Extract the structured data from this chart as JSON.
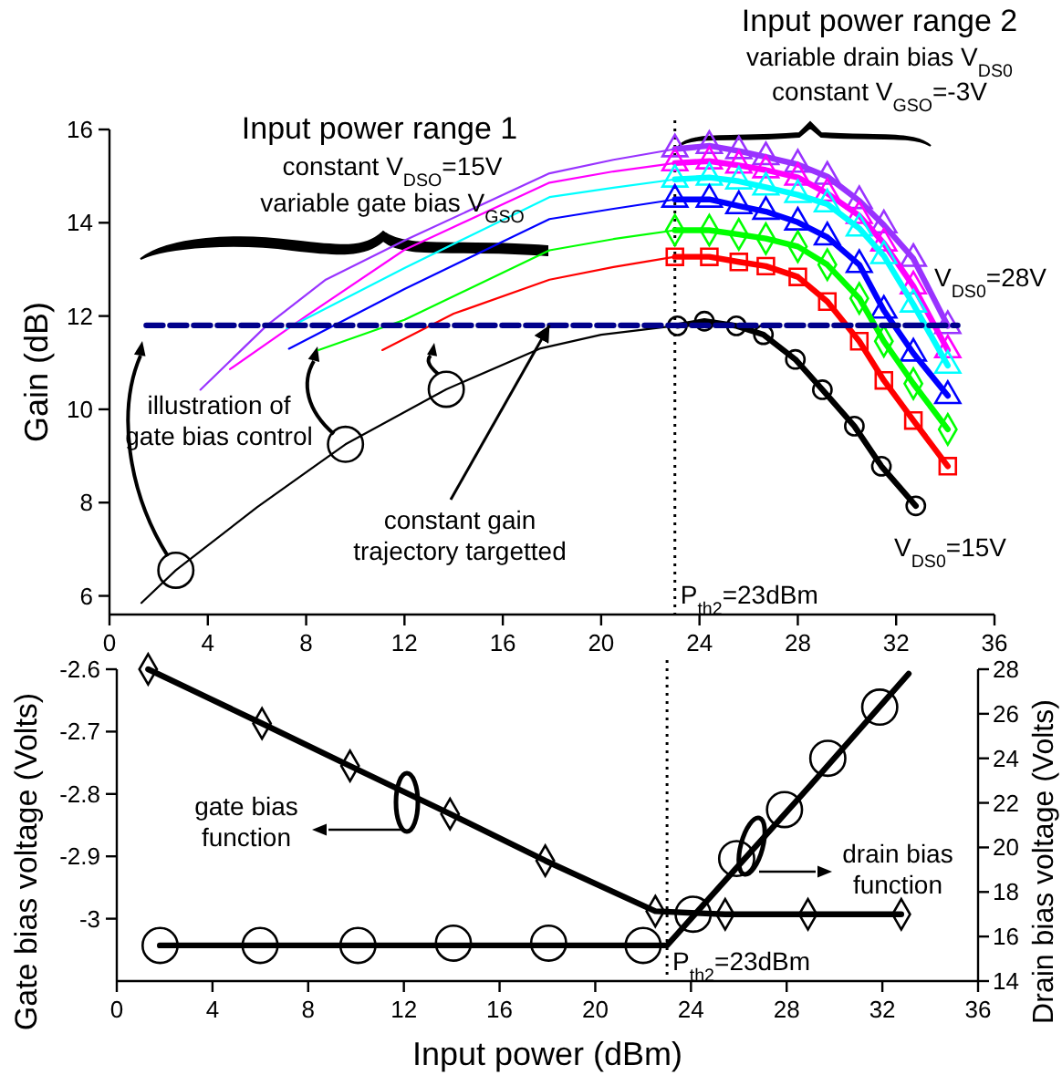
{
  "chart_data": [
    {
      "type": "line",
      "ylabel": "Gain (dB)",
      "xlim": [
        0,
        36
      ],
      "xticks": [
        0,
        4,
        8,
        12,
        16,
        20,
        24,
        28,
        32,
        36
      ],
      "ylim": [
        5.6,
        16
      ],
      "yticks": [
        6,
        8,
        10,
        12,
        14,
        16
      ],
      "series": [
        {
          "color": "#9933ff",
          "marker": "triangle",
          "x": [
            23.0,
            24.4,
            25.6,
            26.7,
            28.0,
            29.2,
            30.5,
            31.5,
            32.7,
            34.1
          ],
          "values": [
            15.58,
            15.65,
            15.54,
            15.41,
            15.25,
            14.99,
            14.47,
            13.95,
            13.23,
            11.79
          ]
        },
        {
          "color": "#ff00ff",
          "marker": "triangle",
          "x": [
            23.0,
            24.4,
            25.6,
            26.7,
            28.0,
            29.2,
            30.5,
            31.5,
            32.7,
            34.1
          ],
          "values": [
            15.28,
            15.32,
            15.23,
            15.13,
            14.97,
            14.63,
            14.15,
            13.56,
            12.64,
            11.27
          ]
        },
        {
          "color": "#00ffff",
          "marker": "triangle",
          "x": [
            23.0,
            24.4,
            25.6,
            26.7,
            28.0,
            29.2,
            30.5,
            31.5,
            32.7,
            34.1
          ],
          "values": [
            14.93,
            14.97,
            14.89,
            14.76,
            14.6,
            14.4,
            13.88,
            13.29,
            12.25,
            10.94
          ]
        },
        {
          "color": "#0000ff",
          "marker": "triangle",
          "x": [
            23.0,
            24.4,
            25.6,
            26.7,
            28.0,
            29.2,
            30.5,
            31.5,
            32.7,
            34.1
          ],
          "values": [
            14.5,
            14.5,
            14.36,
            14.24,
            14.01,
            13.69,
            13.1,
            12.12,
            11.2,
            10.29
          ]
        },
        {
          "color": "#00ff00",
          "marker": "diamond",
          "x": [
            23.0,
            24.4,
            25.6,
            26.7,
            28.0,
            29.2,
            30.5,
            31.5,
            32.7,
            34.1
          ],
          "values": [
            13.84,
            13.84,
            13.75,
            13.66,
            13.49,
            13.1,
            12.38,
            11.46,
            10.55,
            9.57
          ]
        },
        {
          "color": "#ff0000",
          "marker": "square",
          "x": [
            23.0,
            24.4,
            25.6,
            26.7,
            28.0,
            29.2,
            30.5,
            31.5,
            32.7,
            34.1
          ],
          "values": [
            13.27,
            13.27,
            13.16,
            13.07,
            12.84,
            12.31,
            11.46,
            10.62,
            9.76,
            8.78
          ]
        },
        {
          "color": "#000000",
          "marker": "circle",
          "x": [
            23.1,
            24.2,
            25.5,
            26.6,
            27.9,
            29.0,
            30.3,
            31.4,
            32.8
          ],
          "values": [
            11.79,
            11.89,
            11.79,
            11.6,
            11.07,
            10.42,
            9.64,
            8.78,
            7.93
          ]
        },
        {
          "color": "#9933ff",
          "x": [
            3.7,
            6.4,
            8.8,
            12,
            17.9,
            20.5,
            23
          ],
          "values": [
            10.42,
            11.8,
            12.78,
            13.62,
            15.06,
            15.35,
            15.58
          ]
        },
        {
          "color": "#ff00ff",
          "x": [
            4.9,
            8,
            12,
            17.9,
            20.5,
            23
          ],
          "values": [
            10.86,
            12.0,
            13.42,
            14.86,
            15.1,
            15.28
          ]
        },
        {
          "color": "#00ffff",
          "x": [
            7.2,
            12,
            17.9,
            20.5,
            23
          ],
          "values": [
            11.73,
            13.03,
            14.55,
            14.75,
            14.93
          ]
        },
        {
          "color": "#0000ff",
          "x": [
            7.3,
            12,
            17.9,
            20.5,
            23
          ],
          "values": [
            11.3,
            12.58,
            14.08,
            14.3,
            14.5
          ]
        },
        {
          "color": "#00ff00",
          "x": [
            8.5,
            12,
            17.9,
            20.5,
            23
          ],
          "values": [
            11.27,
            11.92,
            13.41,
            13.65,
            13.84
          ]
        },
        {
          "color": "#ff0000",
          "x": [
            11.1,
            14,
            17.9,
            20.5,
            23
          ],
          "values": [
            11.27,
            12.05,
            12.78,
            13.05,
            13.27
          ]
        },
        {
          "color": "#000000",
          "x": [
            1.3,
            2.7,
            6,
            9.6,
            13.7,
            17.5,
            20,
            23
          ],
          "values": [
            5.85,
            6.55,
            7.9,
            9.25,
            10.43,
            11.3,
            11.6,
            11.79
          ]
        },
        {
          "color": "#00008b",
          "line_style": "dashed",
          "x": [
            1.5,
            34.5
          ],
          "values": [
            11.8,
            11.8
          ]
        },
        {
          "type": "scatter",
          "color": "#000000",
          "marker": "circle",
          "x": [
            2.7,
            9.6,
            13.7
          ],
          "values": [
            6.55,
            9.25,
            10.43
          ]
        }
      ],
      "ref_lines": [
        {
          "axis": "x",
          "value": 23,
          "label": "P$_{th2}$=23dBm",
          "color": "#000000",
          "line_style": "dotted"
        }
      ],
      "annotations": [
        "Input power range 1",
        "constant V$_{DSO}$=15V",
        "variable gate bias V$_{GSO}$",
        "Input power range 2",
        "variable drain bias V$_{DS0}$",
        "constant  V$_{GSO}$=-3V",
        "V$_{DS0}$=28V",
        "V$_{DS0}$=15V",
        "illustration of\ngate bias control",
        {
          "text": "constant gain\ntrajectory targetted",
          "x": 17.9,
          "y": 11.8
        }
      ]
    },
    {
      "type": "line",
      "xlabel": "Input power (dBm)",
      "ylabel": "Gate bias voltage (Volts)",
      "y2label": "Drain bias voltage (Volts)",
      "xlim": [
        0,
        36
      ],
      "xticks": [
        0,
        4,
        8,
        12,
        16,
        20,
        24,
        28,
        32,
        36
      ],
      "ylim": [
        -3.1,
        -2.6
      ],
      "yticks": [
        -3.0,
        -2.9,
        -2.8,
        -2.7,
        -2.6
      ],
      "y2lim": [
        14,
        28
      ],
      "y2ticks": [
        14,
        16,
        18,
        20,
        22,
        24,
        26,
        28
      ],
      "series": [
        {
          "color": "#000000",
          "marker": "diamond",
          "x": [
            1.31,
            6.07,
            9.75,
            13.93,
            17.91,
            22.51,
            25.43,
            28.89,
            32.79
          ],
          "values": [
            -2.6,
            -2.687,
            -2.755,
            -2.832,
            -2.907,
            -2.988,
            -2.993,
            -2.993,
            -2.993
          ]
        },
        {
          "type": "scatter",
          "axis": "y2",
          "color": "#000000",
          "marker": "circle",
          "x": [
            1.81,
            5.99,
            10.08,
            14.07,
            18.05,
            22.0,
            24.09,
            25.91,
            27.91,
            29.72,
            31.89
          ],
          "values": [
            15.6,
            15.6,
            15.6,
            15.7,
            15.7,
            15.6,
            17.0,
            19.5,
            21.7,
            24.0,
            26.3
          ]
        },
        {
          "axis": "y2",
          "color": "#000000",
          "x": [
            1.8,
            23,
            29,
            33.1
          ],
          "values": [
            15.6,
            15.6,
            22.8,
            27.8
          ]
        }
      ],
      "ref_lines": [
        {
          "axis": "x",
          "value": 23,
          "label": "P$_{th2}$=23dBm",
          "color": "#000000",
          "line_style": "dotted"
        }
      ],
      "annotations": [
        "gate bias\nfunction",
        "drain bias\nfunction"
      ]
    }
  ]
}
